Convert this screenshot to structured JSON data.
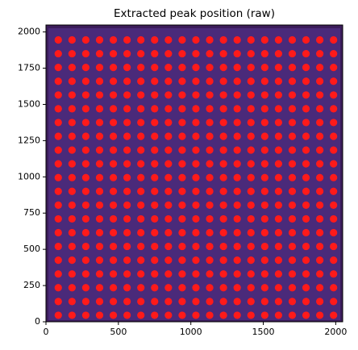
{
  "chart_data": {
    "type": "scatter",
    "title": "Extracted peak position (raw)",
    "color": "#ff1a1a",
    "xlim": [
      0,
      2048
    ],
    "ylim": [
      0,
      2048
    ],
    "xticks": [
      0,
      500,
      1000,
      1500,
      2000
    ],
    "yticks": [
      0,
      250,
      500,
      750,
      1000,
      1250,
      1500,
      1750,
      2000
    ],
    "x": [
      85,
      180,
      275,
      370,
      465,
      560,
      655,
      750,
      845,
      940,
      1035,
      1130,
      1225,
      1320,
      1415,
      1510,
      1605,
      1700,
      1795,
      1890,
      1985,
      85,
      180,
      275,
      370,
      465,
      560,
      655,
      750,
      845,
      940,
      1035,
      1130,
      1225,
      1320,
      1415,
      1510,
      1605,
      1700,
      1795,
      1890,
      1985,
      85,
      180,
      275,
      370,
      465,
      560,
      655,
      750,
      845,
      940,
      1035,
      1130,
      1225,
      1320,
      1415,
      1510,
      1605,
      1700,
      1795,
      1890,
      1985,
      85,
      180,
      275,
      370,
      465,
      560,
      655,
      750,
      845,
      940,
      1035,
      1130,
      1225,
      1320,
      1415,
      1510,
      1605,
      1700,
      1795,
      1890,
      1985,
      85,
      180,
      275,
      370,
      465,
      560,
      655,
      750,
      845,
      940,
      1035,
      1130,
      1225,
      1320,
      1415,
      1510,
      1605,
      1700,
      1795,
      1890,
      1985,
      85,
      180,
      275,
      370,
      465,
      560,
      655,
      750,
      845,
      940,
      1035,
      1130,
      1225,
      1320,
      1415,
      1510,
      1605,
      1700,
      1795,
      1890,
      1985,
      85,
      180,
      275,
      370,
      465,
      560,
      655,
      750,
      845,
      940,
      1035,
      1130,
      1225,
      1320,
      1415,
      1510,
      1605,
      1700,
      1795,
      1890,
      1985,
      85,
      180,
      275,
      370,
      465,
      560,
      655,
      750,
      845,
      940,
      1035,
      1130,
      1225,
      1320,
      1415,
      1510,
      1605,
      1700,
      1795,
      1890,
      1985,
      85,
      180,
      275,
      370,
      465,
      560,
      655,
      750,
      845,
      940,
      1035,
      1130,
      1225,
      1320,
      1415,
      1510,
      1605,
      1700,
      1795,
      1890,
      1985,
      85,
      180,
      275,
      370,
      465,
      560,
      655,
      750,
      845,
      940,
      1035,
      1130,
      1225,
      1320,
      1415,
      1510,
      1605,
      1700,
      1795,
      1890,
      1985,
      85,
      180,
      275,
      370,
      465,
      560,
      655,
      750,
      845,
      940,
      1035,
      1130,
      1225,
      1320,
      1415,
      1510,
      1605,
      1700,
      1795,
      1890,
      1985,
      85,
      180,
      275,
      370,
      465,
      560,
      655,
      750,
      845,
      940,
      1035,
      1130,
      1225,
      1320,
      1415,
      1510,
      1605,
      1700,
      1795,
      1890,
      1985,
      85,
      180,
      275,
      370,
      465,
      560,
      655,
      750,
      845,
      940,
      1035,
      1130,
      1225,
      1320,
      1415,
      1510,
      1605,
      1700,
      1795,
      1890,
      1985,
      85,
      180,
      275,
      370,
      465,
      560,
      655,
      750,
      845,
      940,
      1035,
      1130,
      1225,
      1320,
      1415,
      1510,
      1605,
      1700,
      1795,
      1890,
      1985,
      85,
      180,
      275,
      370,
      465,
      560,
      655,
      750,
      845,
      940,
      1035,
      1130,
      1225,
      1320,
      1415,
      1510,
      1605,
      1700,
      1795,
      1890,
      1985,
      85,
      180,
      275,
      370,
      465,
      560,
      655,
      750,
      845,
      940,
      1035,
      1130,
      1225,
      1320,
      1415,
      1510,
      1605,
      1700,
      1795,
      1890,
      1985,
      85,
      180,
      275,
      370,
      465,
      560,
      655,
      750,
      845,
      940,
      1035,
      1130,
      1225,
      1320,
      1415,
      1510,
      1605,
      1700,
      1795,
      1890,
      1985,
      85,
      180,
      275,
      370,
      465,
      560,
      655,
      750,
      845,
      940,
      1035,
      1130,
      1225,
      1320,
      1415,
      1510,
      1605,
      1700,
      1795,
      1890,
      1985,
      85,
      180,
      275,
      370,
      465,
      560,
      655,
      750,
      845,
      940,
      1035,
      1130,
      1225,
      1320,
      1415,
      1510,
      1605,
      1700,
      1795,
      1890,
      1985,
      85,
      180,
      275,
      370,
      465,
      560,
      655,
      750,
      845,
      940,
      1035,
      1130,
      1225,
      1320,
      1415,
      1510,
      1605,
      1700,
      1795,
      1890,
      1985,
      85,
      180,
      275,
      370,
      465,
      560,
      655,
      750,
      845,
      940,
      1035,
      1130,
      1225,
      1320,
      1415,
      1510,
      1605,
      1700,
      1795,
      1890,
      1985
    ],
    "y": [
      45,
      45,
      45,
      45,
      45,
      45,
      45,
      45,
      45,
      45,
      45,
      45,
      45,
      45,
      45,
      45,
      45,
      45,
      45,
      45,
      45,
      140,
      140,
      140,
      140,
      140,
      140,
      140,
      140,
      140,
      140,
      140,
      140,
      140,
      140,
      140,
      140,
      140,
      140,
      140,
      140,
      140,
      235,
      235,
      235,
      235,
      235,
      235,
      235,
      235,
      235,
      235,
      235,
      235,
      235,
      235,
      235,
      235,
      235,
      235,
      235,
      235,
      235,
      330,
      330,
      330,
      330,
      330,
      330,
      330,
      330,
      330,
      330,
      330,
      330,
      330,
      330,
      330,
      330,
      330,
      330,
      330,
      330,
      330,
      425,
      425,
      425,
      425,
      425,
      425,
      425,
      425,
      425,
      425,
      425,
      425,
      425,
      425,
      425,
      425,
      425,
      425,
      425,
      425,
      425,
      520,
      520,
      520,
      520,
      520,
      520,
      520,
      520,
      520,
      520,
      520,
      520,
      520,
      520,
      520,
      520,
      520,
      520,
      520,
      520,
      520,
      615,
      615,
      615,
      615,
      615,
      615,
      615,
      615,
      615,
      615,
      615,
      615,
      615,
      615,
      615,
      615,
      615,
      615,
      615,
      615,
      615,
      710,
      710,
      710,
      710,
      710,
      710,
      710,
      710,
      710,
      710,
      710,
      710,
      710,
      710,
      710,
      710,
      710,
      710,
      710,
      710,
      710,
      805,
      805,
      805,
      805,
      805,
      805,
      805,
      805,
      805,
      805,
      805,
      805,
      805,
      805,
      805,
      805,
      805,
      805,
      805,
      805,
      805,
      900,
      900,
      900,
      900,
      900,
      900,
      900,
      900,
      900,
      900,
      900,
      900,
      900,
      900,
      900,
      900,
      900,
      900,
      900,
      900,
      900,
      995,
      995,
      995,
      995,
      995,
      995,
      995,
      995,
      995,
      995,
      995,
      995,
      995,
      995,
      995,
      995,
      995,
      995,
      995,
      995,
      995,
      1090,
      1090,
      1090,
      1090,
      1090,
      1090,
      1090,
      1090,
      1090,
      1090,
      1090,
      1090,
      1090,
      1090,
      1090,
      1090,
      1090,
      1090,
      1090,
      1090,
      1090,
      1185,
      1185,
      1185,
      1185,
      1185,
      1185,
      1185,
      1185,
      1185,
      1185,
      1185,
      1185,
      1185,
      1185,
      1185,
      1185,
      1185,
      1185,
      1185,
      1185,
      1185,
      1280,
      1280,
      1280,
      1280,
      1280,
      1280,
      1280,
      1280,
      1280,
      1280,
      1280,
      1280,
      1280,
      1280,
      1280,
      1280,
      1280,
      1280,
      1280,
      1280,
      1280,
      1375,
      1375,
      1375,
      1375,
      1375,
      1375,
      1375,
      1375,
      1375,
      1375,
      1375,
      1375,
      1375,
      1375,
      1375,
      1375,
      1375,
      1375,
      1375,
      1375,
      1375,
      1470,
      1470,
      1470,
      1470,
      1470,
      1470,
      1470,
      1470,
      1470,
      1470,
      1470,
      1470,
      1470,
      1470,
      1470,
      1470,
      1470,
      1470,
      1470,
      1470,
      1470,
      1565,
      1565,
      1565,
      1565,
      1565,
      1565,
      1565,
      1565,
      1565,
      1565,
      1565,
      1565,
      1565,
      1565,
      1565,
      1565,
      1565,
      1565,
      1565,
      1565,
      1565,
      1660,
      1660,
      1660,
      1660,
      1660,
      1660,
      1660,
      1660,
      1660,
      1660,
      1660,
      1660,
      1660,
      1660,
      1660,
      1660,
      1660,
      1660,
      1660,
      1660,
      1660,
      1755,
      1755,
      1755,
      1755,
      1755,
      1755,
      1755,
      1755,
      1755,
      1755,
      1755,
      1755,
      1755,
      1755,
      1755,
      1755,
      1755,
      1755,
      1755,
      1755,
      1755,
      1850,
      1850,
      1850,
      1850,
      1850,
      1850,
      1850,
      1850,
      1850,
      1850,
      1850,
      1850,
      1850,
      1850,
      1850,
      1850,
      1850,
      1850,
      1850,
      1850,
      1850,
      1945,
      1945,
      1945,
      1945,
      1945,
      1945,
      1945,
      1945,
      1945,
      1945,
      1945,
      1945,
      1945,
      1945,
      1945,
      1945,
      1945,
      1945,
      1945,
      1945,
      1945
    ]
  }
}
